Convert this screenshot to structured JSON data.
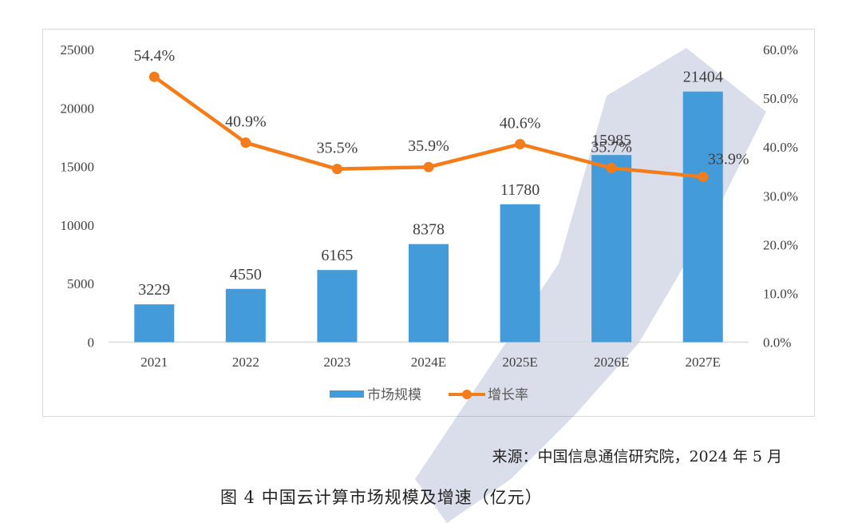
{
  "chart_data": {
    "type": "bar+line",
    "title": "图4 中国云计算市场规模及增速（亿元）",
    "categories": [
      "2021",
      "2022",
      "2023",
      "2024E",
      "2025E",
      "2026E",
      "2027E"
    ],
    "series": [
      {
        "name": "市场规模",
        "type": "bar",
        "axis": "left",
        "color": "#449BDA",
        "values": [
          3229,
          4550,
          6165,
          8378,
          11780,
          15985,
          21404
        ],
        "labels": [
          "3229",
          "4550",
          "6165",
          "8378",
          "11780",
          "15985",
          "21404"
        ]
      },
      {
        "name": "增长率",
        "type": "line",
        "axis": "right",
        "color": "#F57C1A",
        "values": [
          54.4,
          40.9,
          35.5,
          35.9,
          40.6,
          35.7,
          33.9
        ],
        "labels": [
          "54.4%",
          "40.9%",
          "35.5%",
          "35.9%",
          "40.6%",
          "35.7%",
          "33.9%"
        ]
      }
    ],
    "y_left": {
      "ylim": [
        0,
        25000
      ],
      "ticks": [
        "0",
        "5000",
        "10000",
        "15000",
        "20000",
        "25000"
      ]
    },
    "y_right": {
      "ylim": [
        0,
        60
      ],
      "ticks": [
        "0.0%",
        "10.0%",
        "20.0%",
        "30.0%",
        "40.0%",
        "50.0%",
        "60.0%"
      ]
    },
    "xlabel": "",
    "ylabel": "",
    "grid": false,
    "legend_position": "bottom"
  },
  "legend": {
    "bar": "市场规模",
    "line": "增长率"
  },
  "source": "来源：中国信息通信研究院，2024 年 5 月",
  "caption": "图 4  中国云计算市场规模及增速（亿元）"
}
